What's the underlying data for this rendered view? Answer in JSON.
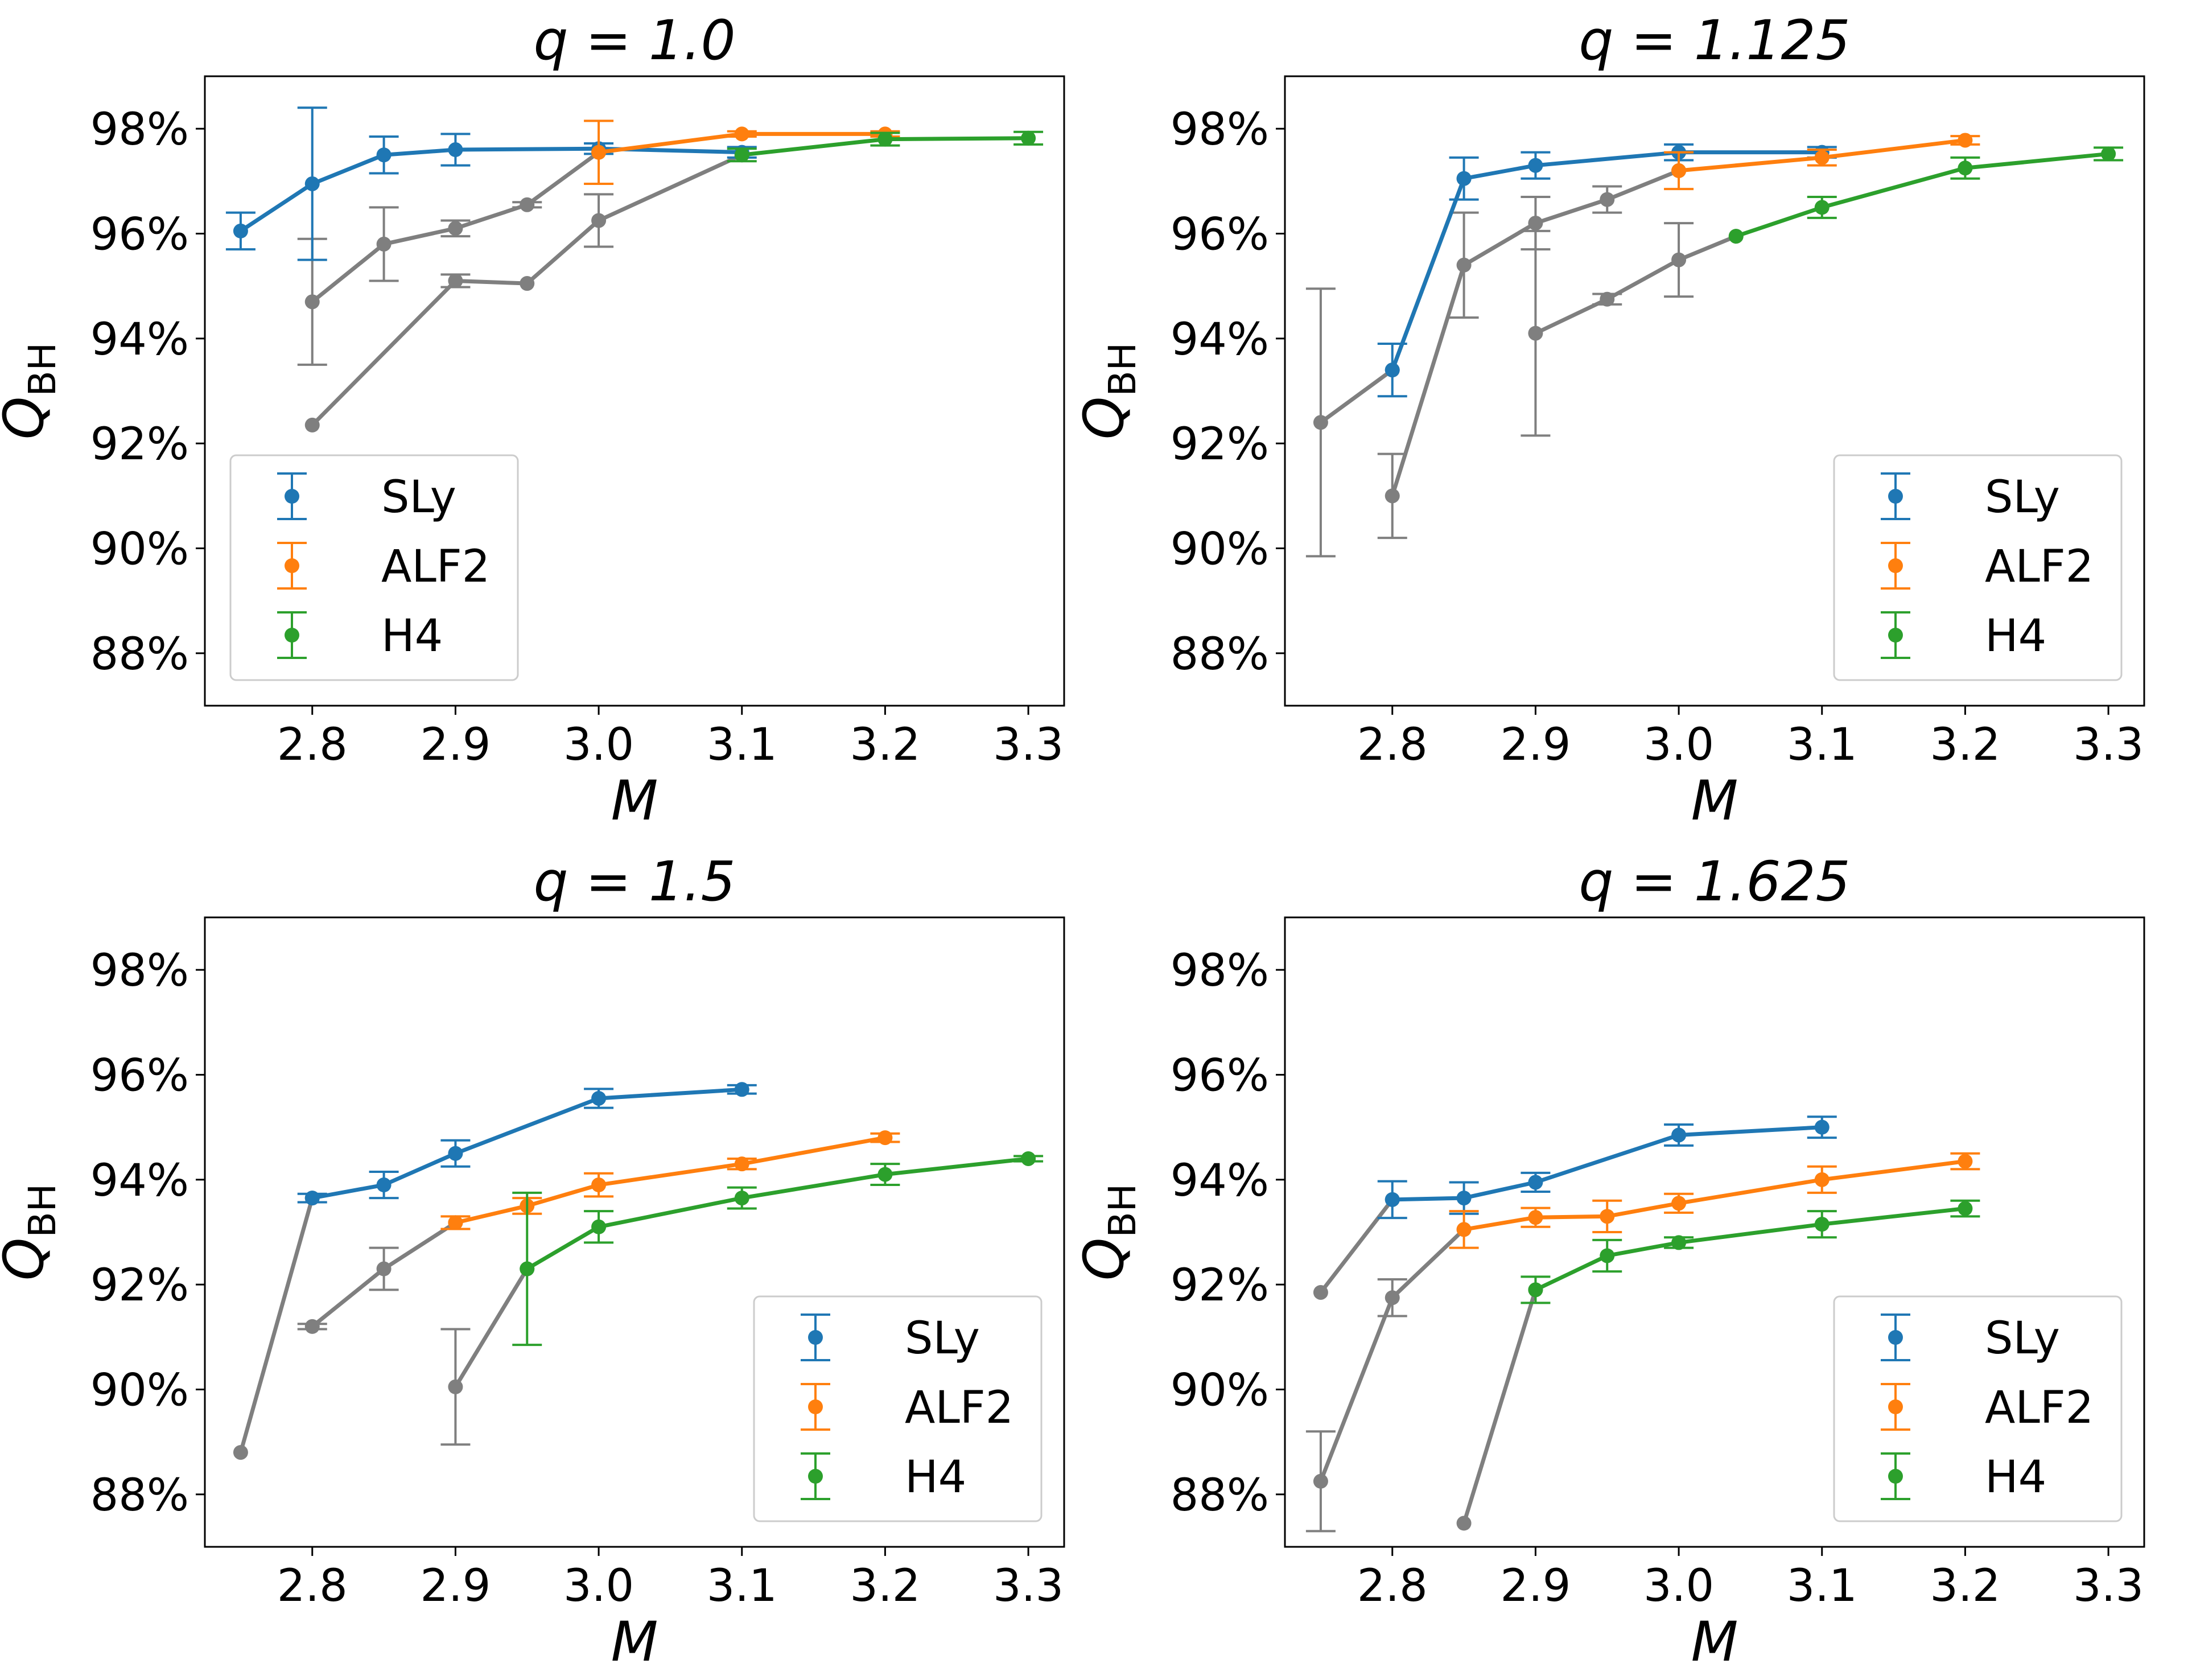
{
  "chart_data": [
    {
      "type": "line",
      "title": "q = 1.0",
      "xlabel": "M",
      "ylabel": "Q_BH",
      "xlim": [
        2.725,
        3.325
      ],
      "ylim": [
        87.0,
        99.0
      ],
      "xticks": [
        "2.8",
        "2.9",
        "3.0",
        "3.1",
        "3.2",
        "3.3"
      ],
      "yticks": [
        "88%",
        "90%",
        "92%",
        "94%",
        "96%",
        "98%"
      ],
      "legend": {
        "position": "lower-left",
        "entries": [
          "SLy",
          "ALF2",
          "H4"
        ]
      },
      "series": [
        {
          "name": "SLy",
          "color": "#1f77b4",
          "x": [
            2.75,
            2.8,
            2.85,
            2.9,
            3.0,
            3.1
          ],
          "y": [
            96.05,
            96.95,
            97.5,
            97.6,
            97.62,
            97.55
          ],
          "err": [
            0.35,
            1.45,
            0.35,
            0.3,
            0.1,
            0.1
          ]
        },
        {
          "name": "ALF2",
          "color": "#ff7f0e",
          "x": [
            3.0,
            3.1,
            3.2
          ],
          "y": [
            97.55,
            97.9,
            97.9
          ],
          "err": [
            0.6,
            0.05,
            0.05
          ]
        },
        {
          "name": "H4",
          "color": "#2ca02c",
          "x": [
            3.1,
            3.2,
            3.3
          ],
          "y": [
            97.5,
            97.8,
            97.82
          ],
          "err": [
            0.12,
            0.12,
            0.12
          ]
        }
      ],
      "gray_series": [
        {
          "x": [
            2.8,
            2.85,
            2.9,
            2.95,
            3.0
          ],
          "y": [
            94.7,
            95.8,
            96.1,
            96.55,
            97.55
          ],
          "err": [
            1.2,
            0.7,
            0.15,
            0.05,
            0
          ]
        },
        {
          "x": [
            2.8,
            2.9,
            2.95,
            3.0,
            3.1
          ],
          "y": [
            92.35,
            95.1,
            95.05,
            96.25,
            97.5
          ],
          "err": [
            0,
            0.12,
            0,
            0.5,
            0
          ]
        }
      ]
    },
    {
      "type": "line",
      "title": "q = 1.125",
      "xlabel": "M",
      "ylabel": "Q_BH",
      "xlim": [
        2.725,
        3.325
      ],
      "ylim": [
        87.0,
        99.0
      ],
      "xticks": [
        "2.8",
        "2.9",
        "3.0",
        "3.1",
        "3.2",
        "3.3"
      ],
      "yticks": [
        "88%",
        "90%",
        "92%",
        "94%",
        "96%",
        "98%"
      ],
      "legend": {
        "position": "lower-right",
        "entries": [
          "SLy",
          "ALF2",
          "H4"
        ]
      },
      "series": [
        {
          "name": "SLy",
          "color": "#1f77b4",
          "x": [
            2.8,
            2.85,
            2.9,
            3.0,
            3.1
          ],
          "y": [
            93.4,
            97.05,
            97.3,
            97.55,
            97.55
          ],
          "err": [
            0.5,
            0.4,
            0.25,
            0.15,
            0.1
          ]
        },
        {
          "name": "ALF2",
          "color": "#ff7f0e",
          "x": [
            3.0,
            3.1,
            3.2
          ],
          "y": [
            97.2,
            97.45,
            97.78
          ],
          "err": [
            0.35,
            0.15,
            0.08
          ]
        },
        {
          "name": "H4",
          "color": "#2ca02c",
          "x": [
            3.04,
            3.1,
            3.2,
            3.3
          ],
          "y": [
            95.95,
            96.5,
            97.25,
            97.52
          ],
          "err": [
            0,
            0.2,
            0.2,
            0.12
          ]
        }
      ],
      "gray_series": [
        {
          "x": [
            2.75,
            2.8,
            2.85
          ],
          "y": [
            92.4,
            93.4,
            97.05
          ],
          "err": [
            2.55,
            0,
            0
          ]
        },
        {
          "x": [
            2.8,
            2.85,
            2.9,
            2.95,
            3.0
          ],
          "y": [
            91.0,
            95.4,
            96.2,
            96.65,
            97.2
          ],
          "err": [
            0.8,
            1.0,
            0.5,
            0.25,
            0
          ]
        },
        {
          "x": [
            2.9,
            2.95,
            3.0,
            3.04
          ],
          "y": [
            94.1,
            94.75,
            95.5,
            95.95
          ],
          "err": [
            1.95,
            0.1,
            0.7,
            0
          ]
        }
      ]
    },
    {
      "type": "line",
      "title": "q = 1.5",
      "xlabel": "M",
      "ylabel": "Q_BH",
      "xlim": [
        2.725,
        3.325
      ],
      "ylim": [
        87.0,
        99.0
      ],
      "xticks": [
        "2.8",
        "2.9",
        "3.0",
        "3.1",
        "3.2",
        "3.3"
      ],
      "yticks": [
        "88%",
        "90%",
        "92%",
        "94%",
        "96%",
        "98%"
      ],
      "legend": {
        "position": "lower-right",
        "entries": [
          "SLy",
          "ALF2",
          "H4"
        ]
      },
      "series": [
        {
          "name": "SLy",
          "color": "#1f77b4",
          "x": [
            2.8,
            2.85,
            2.9,
            3.0,
            3.1
          ],
          "y": [
            93.65,
            93.9,
            94.5,
            95.55,
            95.72
          ],
          "err": [
            0.08,
            0.25,
            0.25,
            0.18,
            0.08
          ]
        },
        {
          "name": "ALF2",
          "color": "#ff7f0e",
          "x": [
            2.9,
            2.95,
            3.0,
            3.1,
            3.2
          ],
          "y": [
            93.18,
            93.5,
            93.9,
            94.3,
            94.8
          ],
          "err": [
            0.12,
            0.15,
            0.22,
            0.1,
            0.08
          ]
        },
        {
          "name": "H4",
          "color": "#2ca02c",
          "x": [
            2.95,
            3.0,
            3.1,
            3.2,
            3.3
          ],
          "y": [
            92.3,
            93.1,
            93.65,
            94.1,
            94.4
          ],
          "err": [
            1.45,
            0.3,
            0.2,
            0.2,
            0.05
          ]
        }
      ],
      "gray_series": [
        {
          "x": [
            2.75,
            2.8
          ],
          "y": [
            88.8,
            93.65
          ],
          "err": [
            0,
            0
          ]
        },
        {
          "x": [
            2.8,
            2.85,
            2.9
          ],
          "y": [
            91.2,
            92.3,
            93.18
          ],
          "err": [
            0.05,
            0.4,
            0
          ]
        },
        {
          "x": [
            2.9,
            2.95
          ],
          "y": [
            90.05,
            92.3
          ],
          "err": [
            1.1,
            0
          ]
        }
      ]
    },
    {
      "type": "line",
      "title": "q = 1.625",
      "xlabel": "M",
      "ylabel": "Q_BH",
      "xlim": [
        2.725,
        3.325
      ],
      "ylim": [
        87.0,
        99.0
      ],
      "xticks": [
        "2.8",
        "2.9",
        "3.0",
        "3.1",
        "3.2",
        "3.3"
      ],
      "yticks": [
        "88%",
        "90%",
        "92%",
        "94%",
        "96%",
        "98%"
      ],
      "legend": {
        "position": "lower-right",
        "entries": [
          "SLy",
          "ALF2",
          "H4"
        ]
      },
      "series": [
        {
          "name": "SLy",
          "color": "#1f77b4",
          "x": [
            2.8,
            2.85,
            2.9,
            3.0,
            3.1
          ],
          "y": [
            93.62,
            93.65,
            93.95,
            94.85,
            95.0
          ],
          "err": [
            0.35,
            0.3,
            0.18,
            0.2,
            0.2
          ]
        },
        {
          "name": "ALF2",
          "color": "#ff7f0e",
          "x": [
            2.85,
            2.9,
            2.95,
            3.0,
            3.1,
            3.2
          ],
          "y": [
            93.05,
            93.28,
            93.3,
            93.55,
            94.0,
            94.35
          ],
          "err": [
            0.35,
            0.18,
            0.3,
            0.18,
            0.25,
            0.15
          ]
        },
        {
          "name": "H4",
          "color": "#2ca02c",
          "x": [
            2.9,
            2.95,
            3.0,
            3.1,
            3.2
          ],
          "y": [
            91.9,
            92.55,
            92.8,
            93.15,
            93.45
          ],
          "err": [
            0.25,
            0.3,
            0.1,
            0.25,
            0.15
          ]
        }
      ],
      "gray_series": [
        {
          "x": [
            2.75,
            2.8
          ],
          "y": [
            91.85,
            93.62
          ],
          "err": [
            0,
            0
          ]
        },
        {
          "x": [
            2.75,
            2.8,
            2.85
          ],
          "y": [
            88.25,
            91.75,
            93.05
          ],
          "err": [
            0.95,
            0.35,
            0
          ]
        },
        {
          "x": [
            2.85,
            2.9
          ],
          "y": [
            87.45,
            91.9
          ],
          "err": [
            0,
            0
          ]
        }
      ]
    }
  ]
}
